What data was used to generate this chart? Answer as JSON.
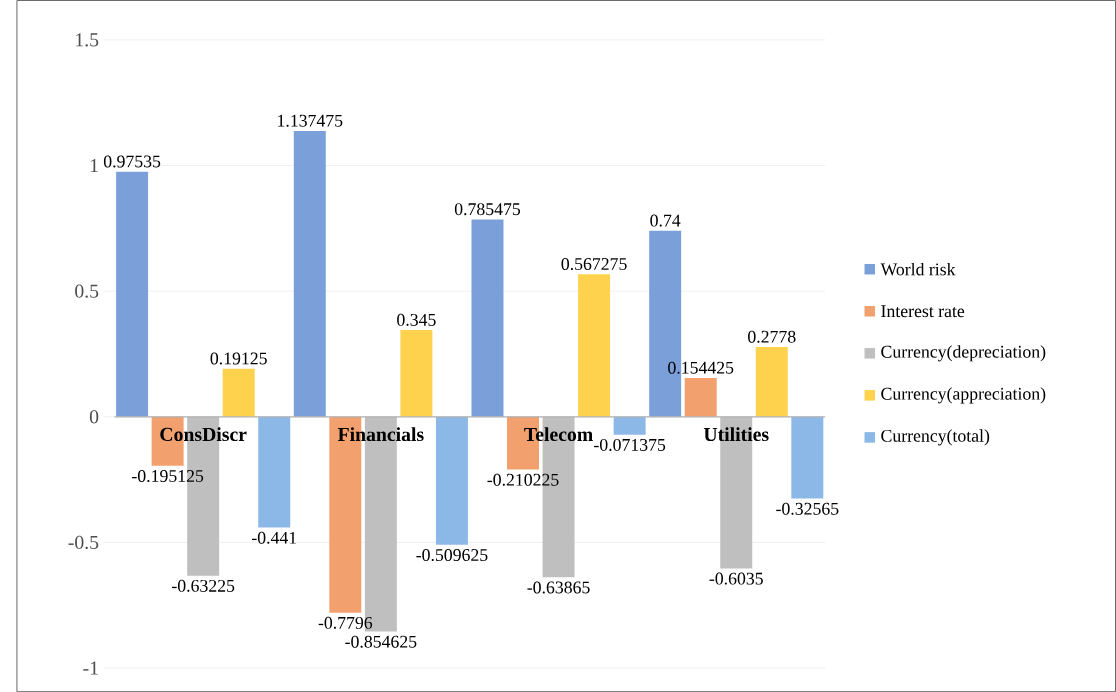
{
  "chart_data": {
    "type": "bar",
    "categories": [
      "ConsDiscr",
      "Financials",
      "Telecom",
      "Utilities"
    ],
    "series": [
      {
        "name": "World risk",
        "color": "#7b9fd9",
        "values": [
          0.97535,
          1.137475,
          0.785475,
          0.74
        ]
      },
      {
        "name": "Interest rate",
        "color": "#f2a06e",
        "values": [
          -0.195125,
          -0.7796,
          -0.210225,
          0.154425
        ]
      },
      {
        "name": "Currency(depreciation)",
        "color": "#bfbfbf",
        "values": [
          -0.63225,
          -0.854625,
          -0.63865,
          -0.6035
        ]
      },
      {
        "name": "Currency(appreciation)",
        "color": "#ffd24d",
        "values": [
          0.19125,
          0.345,
          0.567275,
          0.2778
        ]
      },
      {
        "name": "Currency(total)",
        "color": "#8bb8e6",
        "values": [
          -0.441,
          -0.509625,
          -0.071375,
          -0.32565
        ]
      }
    ],
    "ylim": [
      -1,
      1.5
    ],
    "yticks": [
      -1,
      -0.5,
      0,
      0.5,
      1,
      1.5
    ],
    "grid": "y",
    "legend": "right",
    "data_labels": true
  }
}
